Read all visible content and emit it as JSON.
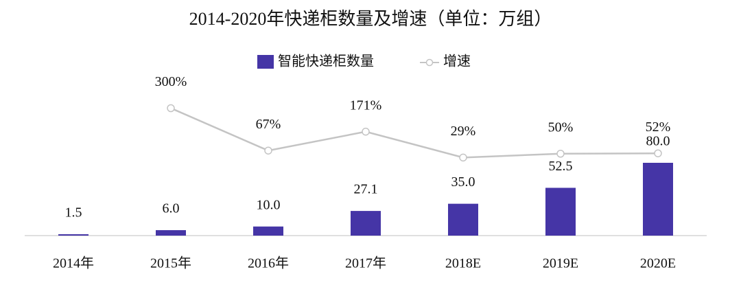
{
  "chart_data": {
    "type": "bar-line",
    "title": "2014-2020年快递柜数量及增速（单位：万组）",
    "categories": [
      "2014年",
      "2015年",
      "2016年",
      "2017年",
      "2018E",
      "2019E",
      "2020E"
    ],
    "series": [
      {
        "name": "智能快递柜数量",
        "type": "bar",
        "color": "#4535a6",
        "values": [
          1.5,
          6.0,
          10.0,
          27.1,
          35.0,
          52.5,
          80.0
        ],
        "value_labels": [
          "1.5",
          "6.0",
          "10.0",
          "27.1",
          "35.0",
          "52.5",
          "80.0"
        ]
      },
      {
        "name": "增速",
        "type": "line",
        "axis": "y2",
        "color": "#c4c4c4",
        "values": [
          null,
          300,
          67,
          171,
          29,
          50,
          52
        ],
        "value_labels": [
          null,
          "300%",
          "67%",
          "171%",
          "29%",
          "50%",
          "52%"
        ]
      }
    ],
    "ylim": [
      0,
      200
    ],
    "y2lim": [
      -400,
      600
    ],
    "legend": "top"
  }
}
